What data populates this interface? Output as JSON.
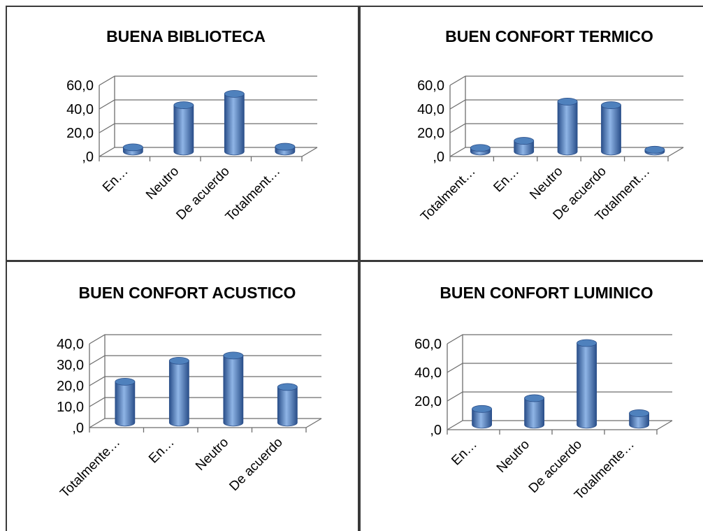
{
  "chart_data": [
    {
      "type": "bar",
      "title": "BUENA BIBLIOTECA",
      "categories": [
        "En…",
        "Neutro",
        "De acuerdo",
        "Totalment…"
      ],
      "values": [
        3.5,
        39.0,
        48.5,
        4.0
      ],
      "ylim": [
        0,
        60
      ],
      "yticks": [
        0,
        20,
        40,
        60
      ],
      "ytick_labels": [
        ",0",
        "20,0",
        "40,0",
        "60,0"
      ],
      "grid": true,
      "legend": "none"
    },
    {
      "type": "bar",
      "title": "BUEN CONFORT TERMICO",
      "categories": [
        "Totalment…",
        "En…",
        "Neutro",
        "De acuerdo",
        "Totalment…"
      ],
      "values": [
        3.0,
        9.0,
        42.0,
        39.0,
        1.5
      ],
      "ylim": [
        0,
        60
      ],
      "yticks": [
        0,
        20,
        40,
        60
      ],
      "ytick_labels": [
        ",0",
        "20,0",
        "40,0",
        "60,0"
      ],
      "grid": true,
      "legend": "none"
    },
    {
      "type": "bar",
      "title": "BUEN CONFORT ACUSTICO",
      "categories": [
        "Totalmente…",
        "En…",
        "Neutro",
        "De acuerdo"
      ],
      "values": [
        19.5,
        29.5,
        32.0,
        17.0
      ],
      "ylim": [
        0,
        40
      ],
      "yticks": [
        0,
        10,
        20,
        30,
        40
      ],
      "ytick_labels": [
        ",0",
        "10,0",
        "20,0",
        "30,0",
        "40,0"
      ],
      "grid": true,
      "legend": "none"
    },
    {
      "type": "bar",
      "title": "BUEN CONFORT LUMINICO",
      "categories": [
        "En…",
        "Neutro",
        "De acuerdo",
        "Totalmente…"
      ],
      "values": [
        11.0,
        18.5,
        57.0,
        8.0
      ],
      "ylim": [
        0,
        60
      ],
      "yticks": [
        0,
        20,
        40,
        60
      ],
      "ytick_labels": [
        ",0",
        "20,0",
        "40,0",
        "60,0"
      ],
      "grid": true,
      "legend": "none"
    }
  ],
  "colors": {
    "bar_light": "#8fb5e6",
    "bar_mid": "#4f81bd",
    "bar_dark": "#2a4f8a",
    "axis": "#6e6e6e",
    "border": "#3a3a3a"
  }
}
